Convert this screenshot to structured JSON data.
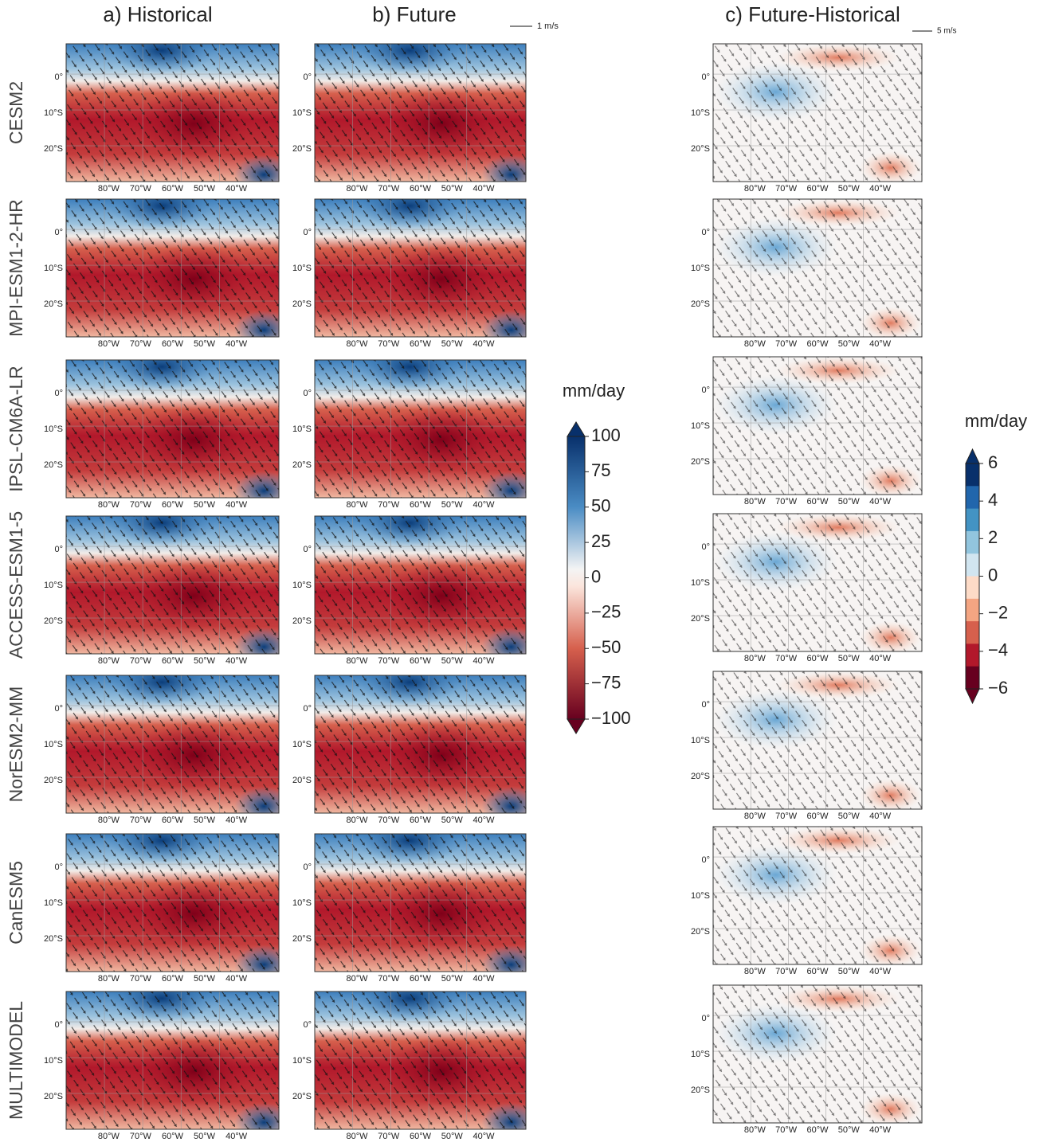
{
  "columns": [
    "a) Historical",
    "b) Future",
    "c) Future-Historical"
  ],
  "rows": [
    "CESM2",
    "MPI-ESM1-2-HR",
    "IPSL-CM6A-LR",
    "ACCESS-ESM1-5",
    "NorESM2-MM",
    "CanESM5",
    "MULTIMODEL"
  ],
  "lat_ticks": [
    "0°",
    "10°S",
    "20°S"
  ],
  "lon_ticks": [
    "80°W",
    "70°W",
    "60°W",
    "50°W",
    "40°W"
  ],
  "reference_arrows": [
    "1 m/s",
    "5 m/s"
  ],
  "colorbars": [
    {
      "label": "mm/day",
      "ticks": [
        100,
        75,
        50,
        25,
        0,
        {
          "value": -25,
          "label": "−25"
        },
        {
          "value": -50,
          "label": "−50"
        },
        {
          "value": -75,
          "label": "−75"
        },
        {
          "value": -100,
          "label": "−100"
        }
      ]
    },
    {
      "label": "mm/day",
      "ticks": [
        6,
        4,
        2,
        0,
        {
          "value": -2,
          "label": "−2"
        },
        {
          "value": -4,
          "label": "−4"
        },
        {
          "value": -6,
          "label": "−6"
        }
      ]
    }
  ]
}
